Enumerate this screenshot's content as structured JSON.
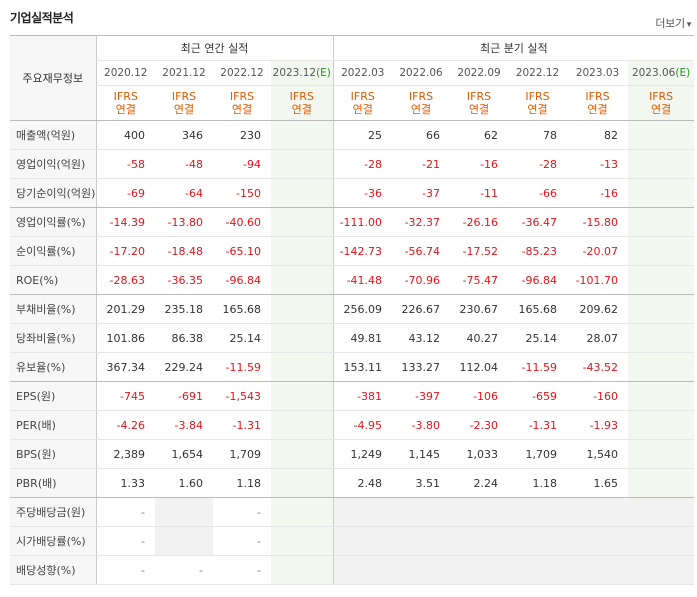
{
  "header": {
    "title": "기업실적분석",
    "more_label": "더보기",
    "more_icon": "chevron-down-icon"
  },
  "table": {
    "corner_label": "주요재무정보",
    "group_annual": "최근 연간 실적",
    "group_quarter": "최근 분기 실적",
    "periods_annual": [
      "2020.12",
      "2021.12",
      "2022.12",
      "2023.12"
    ],
    "periods_quarter": [
      "2022.03",
      "2022.06",
      "2022.09",
      "2022.12",
      "2023.03",
      "2023.06"
    ],
    "estimate_suffix": "(E)",
    "ifrs_top": "IFRS",
    "ifrs_bottom": "연결",
    "rows": [
      {
        "label": "매출액(억원)",
        "annual": [
          "400",
          "346",
          "230",
          ""
        ],
        "quarter": [
          "25",
          "66",
          "62",
          "78",
          "82",
          ""
        ]
      },
      {
        "label": "영업이익(억원)",
        "annual": [
          "-58",
          "-48",
          "-94",
          ""
        ],
        "quarter": [
          "-28",
          "-21",
          "-16",
          "-28",
          "-13",
          ""
        ]
      },
      {
        "label": "당기순이익(억원)",
        "annual": [
          "-69",
          "-64",
          "-150",
          ""
        ],
        "quarter": [
          "-36",
          "-37",
          "-11",
          "-66",
          "-16",
          ""
        ]
      },
      {
        "label": "영업이익률(%)",
        "annual": [
          "-14.39",
          "-13.80",
          "-40.60",
          ""
        ],
        "quarter": [
          "-111.00",
          "-32.37",
          "-26.16",
          "-36.47",
          "-15.80",
          ""
        ]
      },
      {
        "label": "순이익률(%)",
        "annual": [
          "-17.20",
          "-18.48",
          "-65.10",
          ""
        ],
        "quarter": [
          "-142.73",
          "-56.74",
          "-17.52",
          "-85.23",
          "-20.07",
          ""
        ]
      },
      {
        "label": "ROE(%)",
        "annual": [
          "-28.63",
          "-36.35",
          "-96.84",
          ""
        ],
        "quarter": [
          "-41.48",
          "-70.96",
          "-75.47",
          "-96.84",
          "-101.70",
          ""
        ]
      },
      {
        "label": "부채비율(%)",
        "annual": [
          "201.29",
          "235.18",
          "165.68",
          ""
        ],
        "quarter": [
          "256.09",
          "226.67",
          "230.67",
          "165.68",
          "209.62",
          ""
        ]
      },
      {
        "label": "당좌비율(%)",
        "annual": [
          "101.86",
          "86.38",
          "25.14",
          ""
        ],
        "quarter": [
          "49.81",
          "43.12",
          "40.27",
          "25.14",
          "28.07",
          ""
        ]
      },
      {
        "label": "유보율(%)",
        "annual": [
          "367.34",
          "229.24",
          "-11.59",
          ""
        ],
        "quarter": [
          "153.11",
          "133.27",
          "112.04",
          "-11.59",
          "-43.52",
          ""
        ]
      },
      {
        "label": "EPS(원)",
        "annual": [
          "-745",
          "-691",
          "-1,543",
          ""
        ],
        "quarter": [
          "-381",
          "-397",
          "-106",
          "-659",
          "-160",
          ""
        ]
      },
      {
        "label": "PER(배)",
        "annual": [
          "-4.26",
          "-3.84",
          "-1.31",
          ""
        ],
        "quarter": [
          "-4.95",
          "-3.80",
          "-2.30",
          "-1.31",
          "-1.93",
          ""
        ]
      },
      {
        "label": "BPS(원)",
        "annual": [
          "2,389",
          "1,654",
          "1,709",
          ""
        ],
        "quarter": [
          "1,249",
          "1,145",
          "1,033",
          "1,709",
          "1,540",
          ""
        ]
      },
      {
        "label": "PBR(배)",
        "annual": [
          "1.33",
          "1.60",
          "1.18",
          ""
        ],
        "quarter": [
          "2.48",
          "3.51",
          "2.24",
          "1.18",
          "1.65",
          ""
        ]
      },
      {
        "label": "주당배당금(원)",
        "annual": [
          "-",
          "",
          "-",
          ""
        ],
        "quarter": [
          "",
          "",
          "",
          "",
          "",
          ""
        ]
      },
      {
        "label": "시가배당률(%)",
        "annual": [
          "-",
          "",
          "-",
          ""
        ],
        "quarter": [
          "",
          "",
          "",
          "",
          "",
          ""
        ]
      },
      {
        "label": "배당성향(%)",
        "annual": [
          "-",
          "-",
          "-",
          ""
        ],
        "quarter": [
          "",
          "",
          "",
          "",
          "",
          ""
        ]
      }
    ]
  },
  "colors": {
    "negative": "#e4141b",
    "ifrs": "#e05a00",
    "estimate_bg": "#f2f8ef",
    "estimate_text": "#2e8b2e"
  }
}
